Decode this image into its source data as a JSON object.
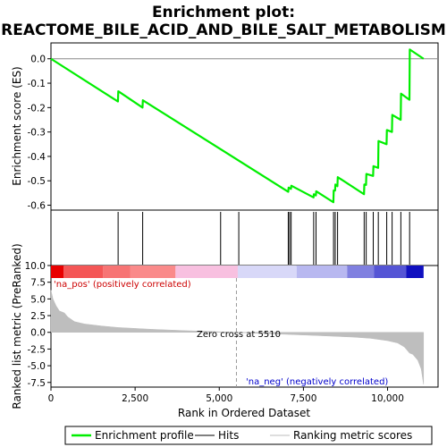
{
  "chart_data": {
    "type": "line",
    "title_line1": "Enrichment plot:",
    "title_line2": "REACTOME_BILE_ACID_AND_BILE_SALT_METABOLISM",
    "es_panel": {
      "ylabel": "Enrichment score (ES)",
      "ylim": [
        -0.62,
        0.065
      ],
      "yticks": [
        0.0,
        -0.1,
        -0.2,
        -0.3,
        -0.4,
        -0.5,
        -0.6
      ],
      "ytick_labels": [
        "0.0",
        "-0.1",
        "-0.2",
        "-0.3",
        "-0.4",
        "-0.5",
        "-0.6"
      ],
      "series": [
        {
          "name": "Enrichment profile",
          "color": "#00ee00",
          "x": [
            0,
            1990,
            2000,
            2720,
            2730,
            7050,
            7060,
            7130,
            7140,
            7800,
            7810,
            7870,
            7880,
            8390,
            8400,
            8440,
            8450,
            8510,
            8520,
            9300,
            9310,
            9360,
            9370,
            9570,
            9580,
            9720,
            9730,
            9970,
            9980,
            10130,
            10140,
            10390,
            10400,
            10650,
            10660,
            11070
          ],
          "y": [
            0.0,
            -0.175,
            -0.133,
            -0.2,
            -0.17,
            -0.545,
            -0.528,
            -0.533,
            -0.52,
            -0.568,
            -0.555,
            -0.56,
            -0.543,
            -0.588,
            -0.54,
            -0.54,
            -0.515,
            -0.522,
            -0.485,
            -0.555,
            -0.515,
            -0.517,
            -0.472,
            -0.48,
            -0.44,
            -0.447,
            -0.337,
            -0.35,
            -0.292,
            -0.3,
            -0.23,
            -0.25,
            -0.143,
            -0.168,
            0.038,
            0.0
          ]
        }
      ]
    },
    "hits": {
      "color": "#000000",
      "x": [
        1995,
        2725,
        5040,
        5580,
        7050,
        7090,
        7135,
        7805,
        7875,
        8395,
        8445,
        8515,
        9305,
        9365,
        9575,
        9725,
        9975,
        10135,
        10395,
        10655
      ]
    },
    "metric_panel": {
      "ylabel": "Ranked list metric (PreRanked)",
      "ylim": [
        -8.2,
        10.0
      ],
      "yticks": [
        10.0,
        7.5,
        5.0,
        2.5,
        0.0,
        -2.5,
        -5.0,
        -7.5
      ],
      "ytick_labels": [
        "10.0",
        "7.5",
        "5.0",
        "2.5",
        "0.0",
        "-2.5",
        "-5.0",
        "-7.5"
      ],
      "series": [
        {
          "name": "Ranking metric scores",
          "color": "#bebebe",
          "x": [
            0,
            60,
            150,
            250,
            400,
            500,
            700,
            1000,
            1500,
            2000,
            3000,
            4000,
            5000,
            5510,
            6000,
            7000,
            8000,
            9000,
            9500,
            10000,
            10300,
            10500,
            10650,
            10750,
            10900,
            11000,
            11070
          ],
          "y": [
            6.3,
            5.0,
            4.0,
            3.2,
            2.9,
            2.3,
            1.6,
            1.25,
            0.95,
            0.72,
            0.45,
            0.25,
            0.08,
            0.0,
            -0.12,
            -0.3,
            -0.5,
            -0.72,
            -0.9,
            -1.25,
            -1.6,
            -2.2,
            -3.1,
            -3.3,
            -4.2,
            -5.5,
            -7.8
          ]
        }
      ]
    },
    "xaxis": {
      "xlabel": "Rank in Ordered Dataset",
      "xlim": [
        0,
        11500
      ],
      "xticks": [
        0,
        2500,
        5000,
        7500,
        10000
      ],
      "xtick_labels": [
        "0",
        "2,500",
        "5,000",
        "7,500",
        "10,000"
      ]
    },
    "colorbar": {
      "x_end": 11070,
      "segments": [
        {
          "x0": 0,
          "x1": 380,
          "color": "#e80000"
        },
        {
          "x0": 380,
          "x1": 1550,
          "color": "#f45656"
        },
        {
          "x0": 1550,
          "x1": 2350,
          "color": "#f77474"
        },
        {
          "x0": 2350,
          "x1": 3700,
          "color": "#fa8a8a"
        },
        {
          "x0": 3700,
          "x1": 5550,
          "color": "#f8c0e0"
        },
        {
          "x0": 5550,
          "x1": 7300,
          "color": "#d8d8f8"
        },
        {
          "x0": 7300,
          "x1": 8800,
          "color": "#b8b8f0"
        },
        {
          "x0": 8800,
          "x1": 9600,
          "color": "#8080e0"
        },
        {
          "x0": 9600,
          "x1": 10550,
          "color": "#5555d5"
        },
        {
          "x0": 10550,
          "x1": 11070,
          "color": "#1010c0"
        }
      ]
    },
    "annotations": {
      "pos_label": "'na_pos' (positively correlated)",
      "pos_color": "#cc0000",
      "neg_label": "'na_neg' (negatively correlated)",
      "neg_color": "#0000cc",
      "zero_cross_label": "Zero cross at 5510",
      "zero_cross_x": 5510
    },
    "legend": {
      "placement": "bottom",
      "items": [
        {
          "label": "Enrichment profile",
          "color": "#00ee00"
        },
        {
          "label": "Hits",
          "color": "#000000"
        },
        {
          "label": "Ranking metric scores",
          "color": "#bebebe"
        }
      ]
    }
  }
}
